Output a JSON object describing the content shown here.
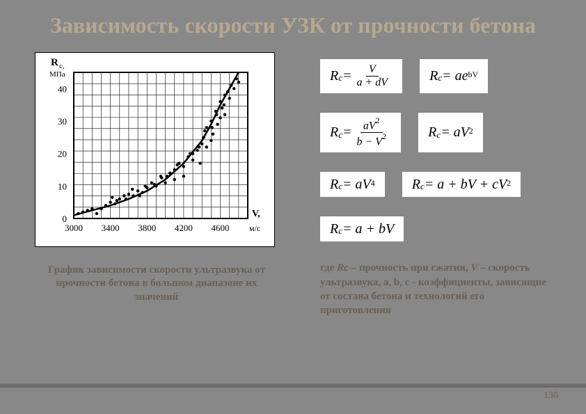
{
  "title": "Зависимость скорости УЗК от прочности бетона",
  "chart": {
    "type": "scatter",
    "y_axis": {
      "label_top": "R",
      "label_sub": "с,",
      "unit": "МПа",
      "ticks": [
        0,
        10,
        20,
        30,
        40
      ],
      "ylim": [
        0,
        45
      ]
    },
    "x_axis": {
      "label": "V,",
      "unit": "м/с",
      "ticks": [
        3000,
        3400,
        3800,
        4200,
        4600
      ],
      "xlim": [
        3000,
        4900
      ]
    },
    "background_color": "#ffffff",
    "grid_color": "#000000",
    "point_color": "#000000",
    "curve_color": "#000000",
    "curve_width": 2.5,
    "point_radius": 2.2,
    "grid_cols": 19,
    "grid_rows": 13,
    "scatter_points": [
      [
        3050,
        1.5
      ],
      [
        3100,
        2
      ],
      [
        3150,
        2.5
      ],
      [
        3200,
        3
      ],
      [
        3300,
        3
      ],
      [
        3350,
        4
      ],
      [
        3400,
        5
      ],
      [
        3450,
        4.5
      ],
      [
        3500,
        6
      ],
      [
        3550,
        7
      ],
      [
        3600,
        7.5
      ],
      [
        3650,
        7
      ],
      [
        3700,
        8.5
      ],
      [
        3750,
        8
      ],
      [
        3800,
        9.5
      ],
      [
        3850,
        11
      ],
      [
        3900,
        10
      ],
      [
        3950,
        13
      ],
      [
        4000,
        11
      ],
      [
        4050,
        14
      ],
      [
        4100,
        15
      ],
      [
        4100,
        12
      ],
      [
        4150,
        17
      ],
      [
        4200,
        16
      ],
      [
        4200,
        13
      ],
      [
        4250,
        19
      ],
      [
        4300,
        18
      ],
      [
        4300,
        20
      ],
      [
        4350,
        21
      ],
      [
        4380,
        17
      ],
      [
        4400,
        23
      ],
      [
        4420,
        25
      ],
      [
        4450,
        22
      ],
      [
        4450,
        28
      ],
      [
        4500,
        24
      ],
      [
        4500,
        30
      ],
      [
        4520,
        26
      ],
      [
        4550,
        33
      ],
      [
        4570,
        29
      ],
      [
        4600,
        31
      ],
      [
        4600,
        36
      ],
      [
        4620,
        34
      ],
      [
        4650,
        38
      ],
      [
        4650,
        32
      ],
      [
        4680,
        39
      ],
      [
        4700,
        37
      ],
      [
        4720,
        41
      ],
      [
        4750,
        40
      ],
      [
        4780,
        43
      ],
      [
        4800,
        42
      ],
      [
        3250,
        1.5
      ],
      [
        3420,
        6.5
      ],
      [
        3470,
        5.5
      ],
      [
        3570,
        6
      ],
      [
        3640,
        9
      ],
      [
        3720,
        7
      ],
      [
        3780,
        10
      ],
      [
        3880,
        10.5
      ],
      [
        3960,
        12.5
      ],
      [
        4020,
        13
      ],
      [
        4130,
        16.5
      ],
      [
        4270,
        20
      ],
      [
        4370,
        22
      ],
      [
        4430,
        27
      ],
      [
        4510,
        28
      ],
      [
        4560,
        32
      ],
      [
        4640,
        35
      ]
    ],
    "curve_points": [
      [
        3000,
        1
      ],
      [
        3200,
        2.5
      ],
      [
        3400,
        4
      ],
      [
        3600,
        6
      ],
      [
        3800,
        8.5
      ],
      [
        4000,
        12
      ],
      [
        4200,
        17
      ],
      [
        4400,
        24
      ],
      [
        4500,
        29
      ],
      [
        4600,
        35
      ],
      [
        4700,
        40
      ],
      [
        4800,
        45
      ]
    ]
  },
  "caption": "График зависимости скорости ультразвука от прочности бетона в большом диапазоне их значений",
  "formulas": {
    "f1": {
      "lhs": "R",
      "lhs_sub": "c",
      "rhs": "frac",
      "num": "V",
      "den": "a + dV"
    },
    "f2": {
      "lhs": "R",
      "lhs_sub": "c",
      "rhs": "ae",
      "sup": "bV"
    },
    "f3": {
      "lhs": "R",
      "lhs_sub": "c",
      "rhs": "frac",
      "num": "aV",
      "num_sup": "2",
      "den": "b − V",
      "den_sup": "2"
    },
    "f4": {
      "lhs": "R",
      "lhs_sub": "c",
      "rhs": "aV",
      "sup": "2"
    },
    "f5": {
      "lhs": "R",
      "lhs_sub": "c",
      "rhs": "aV",
      "sup": "4"
    },
    "f6": {
      "lhs": "R",
      "lhs_sub": "c",
      "rhs_text": "a + bV + cV",
      "sup": "2"
    },
    "f7": {
      "lhs": "R",
      "lhs_sub": "c",
      "rhs_text": "a + bV"
    }
  },
  "legend": {
    "text_parts": [
      "где ",
      "Rc",
      " – прочность при сжатии, ",
      "V",
      " – скорость ультразвука, a, b, c - коэффициенты, зависящие от состава бетона и технологий его приготовления"
    ]
  },
  "page_number": "136"
}
